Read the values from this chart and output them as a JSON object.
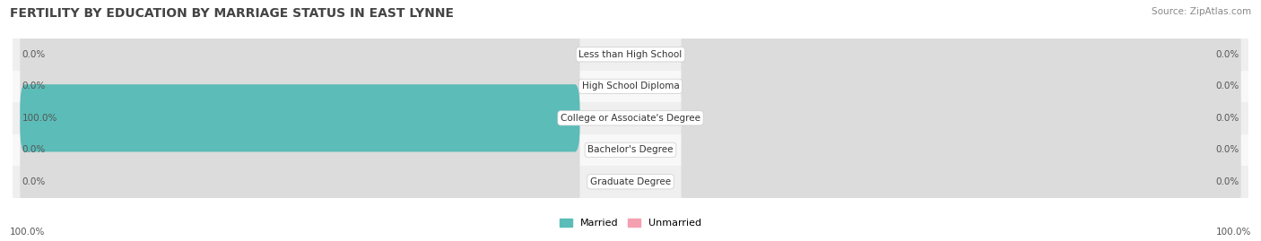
{
  "title": "FERTILITY BY EDUCATION BY MARRIAGE STATUS IN EAST LYNNE",
  "source": "Source: ZipAtlas.com",
  "categories": [
    "Less than High School",
    "High School Diploma",
    "College or Associate's Degree",
    "Bachelor's Degree",
    "Graduate Degree"
  ],
  "married_values": [
    0.0,
    0.0,
    100.0,
    0.0,
    0.0
  ],
  "unmarried_values": [
    0.0,
    0.0,
    0.0,
    0.0,
    0.0
  ],
  "married_color": "#5bbcb8",
  "unmarried_color": "#f4a0b0",
  "bar_bg_color": "#dcdcdc",
  "row_bg_even": "#efefef",
  "row_bg_odd": "#f8f8f8",
  "axis_label_left": "100.0%",
  "axis_label_right": "100.0%",
  "title_fontsize": 10,
  "source_fontsize": 7.5,
  "value_fontsize": 7.5,
  "cat_fontsize": 7.5,
  "legend_fontsize": 8,
  "background_color": "#ffffff",
  "max_val": 100.0
}
